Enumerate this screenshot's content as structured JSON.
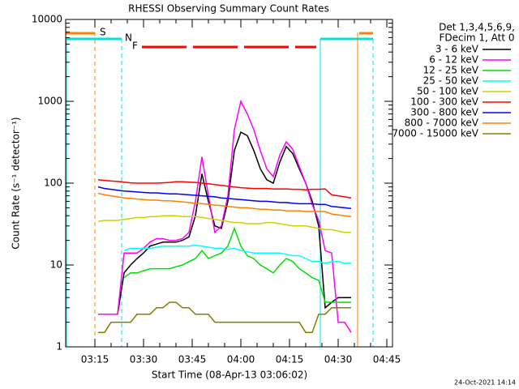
{
  "chart_data": {
    "type": "line",
    "title": "RHESSI Observing Summary Count Rates",
    "xlabel": "Start Time (08-Apr-13 03:06:02)",
    "ylabel": "Count Rate (s⁻¹ detector⁻¹)",
    "legend_header": [
      "Det 1,3,4,5,6,9,",
      "FDecim 1, Att 0"
    ],
    "footer": "24-Oct-2021 14:14",
    "flags": [
      {
        "label": "S",
        "color": "#ff8000"
      },
      {
        "label": "N",
        "color": "#00e0e0"
      },
      {
        "label": "F",
        "color": "#ff0000"
      }
    ],
    "log_y": true,
    "legend": "right",
    "xlim": [
      6,
      106.75
    ],
    "xticks": [
      {
        "value": 15,
        "label": "03:15"
      },
      {
        "value": 30,
        "label": "03:30"
      },
      {
        "value": 45,
        "label": "03:45"
      },
      {
        "value": 60,
        "label": "04:00"
      },
      {
        "value": 75,
        "label": "04:15"
      },
      {
        "value": 90,
        "label": "04:30"
      },
      {
        "value": 105,
        "label": "04:45"
      }
    ],
    "ylim": [
      1,
      10000
    ],
    "yticks": [
      1,
      10,
      100,
      1000,
      10000
    ],
    "x": [
      16,
      18,
      20,
      22,
      24,
      26,
      28,
      30,
      32,
      34,
      36,
      38,
      40,
      42,
      44,
      46,
      48,
      50,
      52,
      54,
      56,
      58,
      60,
      62,
      64,
      66,
      68,
      70,
      72,
      74,
      76,
      78,
      80,
      82,
      84,
      86,
      88,
      90,
      92,
      94
    ],
    "series": [
      {
        "name": "3 - 6 keV",
        "color": "#000000",
        "values": [
          2.5,
          2.5,
          2.5,
          2.5,
          8,
          10,
          12,
          14,
          17,
          18,
          19,
          19,
          19,
          20,
          22,
          40,
          130,
          60,
          30,
          28,
          60,
          250,
          420,
          380,
          250,
          150,
          110,
          100,
          180,
          280,
          230,
          150,
          100,
          60,
          30,
          3,
          3.5,
          4,
          4,
          4
        ]
      },
      {
        "name": "6 - 12 keV",
        "color": "#ff00ff",
        "values": [
          2.5,
          2.5,
          2.5,
          2.5,
          14,
          14,
          14,
          16,
          19,
          21,
          21,
          20,
          20,
          21,
          25,
          60,
          210,
          70,
          25,
          30,
          70,
          450,
          1000,
          700,
          450,
          250,
          150,
          120,
          220,
          320,
          260,
          160,
          100,
          55,
          35,
          15,
          14,
          2,
          2,
          1.5
        ]
      },
      {
        "name": "12 - 25 keV",
        "color": "#00e000",
        "values": [
          null,
          null,
          null,
          null,
          7,
          8,
          8,
          8.5,
          9,
          9,
          9,
          9,
          9.5,
          10,
          11,
          12,
          15,
          12,
          13,
          14,
          17,
          28,
          17,
          13,
          12,
          10,
          9,
          8,
          10,
          12,
          11,
          9,
          8,
          7,
          6.5,
          3.5,
          3.5,
          3.5,
          3.5,
          3.5
        ]
      },
      {
        "name": "25 - 50 keV",
        "color": "#00ffff",
        "values": [
          null,
          null,
          null,
          null,
          15,
          16,
          16,
          16,
          16,
          16.5,
          17,
          17,
          17,
          17,
          17,
          17.5,
          17,
          16.5,
          16,
          16,
          15.5,
          16,
          15,
          14.5,
          14,
          14,
          14,
          14,
          14,
          13.5,
          13,
          13,
          12,
          11,
          11,
          10.5,
          11,
          11,
          10.5,
          10.5
        ]
      },
      {
        "name": "50 - 100 keV",
        "color": "#d0d000",
        "values": [
          34,
          35,
          35,
          35,
          36,
          37,
          38,
          38,
          39,
          39,
          40,
          40,
          40,
          39,
          39,
          39,
          38,
          37,
          36,
          35,
          34,
          33,
          33,
          32,
          32,
          32,
          33,
          33,
          32,
          31,
          30,
          30,
          30,
          29,
          28,
          27,
          27,
          26,
          25,
          25
        ]
      },
      {
        "name": "100 - 300 keV",
        "color": "#ff0000",
        "values": [
          110,
          108,
          106,
          105,
          103,
          101,
          100,
          100,
          100,
          100,
          101,
          102,
          104,
          104,
          103,
          102,
          100,
          98,
          96,
          94,
          92,
          90,
          88,
          87,
          86,
          86,
          86,
          85,
          85,
          85,
          84,
          84,
          83,
          84,
          84,
          85,
          72,
          70,
          68,
          66
        ]
      },
      {
        "name": "300 - 800 keV",
        "color": "#0000ff",
        "values": [
          90,
          86,
          84,
          82,
          80,
          79,
          78,
          77,
          76,
          76,
          75,
          74,
          74,
          73,
          72,
          71,
          70,
          69,
          68,
          66,
          65,
          64,
          63,
          62,
          61,
          60,
          60,
          59,
          58,
          58,
          57,
          56,
          56,
          56,
          55,
          55,
          52,
          51,
          50,
          49
        ]
      },
      {
        "name": "800 - 7000 keV",
        "color": "#ff8000",
        "values": [
          75,
          72,
          70,
          68,
          66,
          65,
          64,
          63,
          62,
          62,
          61,
          61,
          60,
          59,
          58,
          57,
          56,
          55,
          54,
          53,
          52,
          51,
          50,
          50,
          49,
          48,
          48,
          47,
          47,
          46,
          46,
          46,
          45,
          45,
          45,
          45,
          42,
          41,
          40,
          39
        ]
      },
      {
        "name": "7000 - 15000 keV",
        "color": "#808000",
        "values": [
          1.5,
          1.5,
          2,
          2,
          2,
          2,
          2.5,
          2.5,
          2.5,
          3,
          3,
          3.5,
          3.5,
          3,
          3,
          2.5,
          2.5,
          2.5,
          2,
          2,
          2,
          2,
          2,
          2,
          2,
          2,
          2,
          2,
          2,
          2,
          2,
          2,
          1.5,
          1.5,
          2.5,
          2.5,
          3,
          3,
          3,
          3
        ]
      }
    ]
  }
}
